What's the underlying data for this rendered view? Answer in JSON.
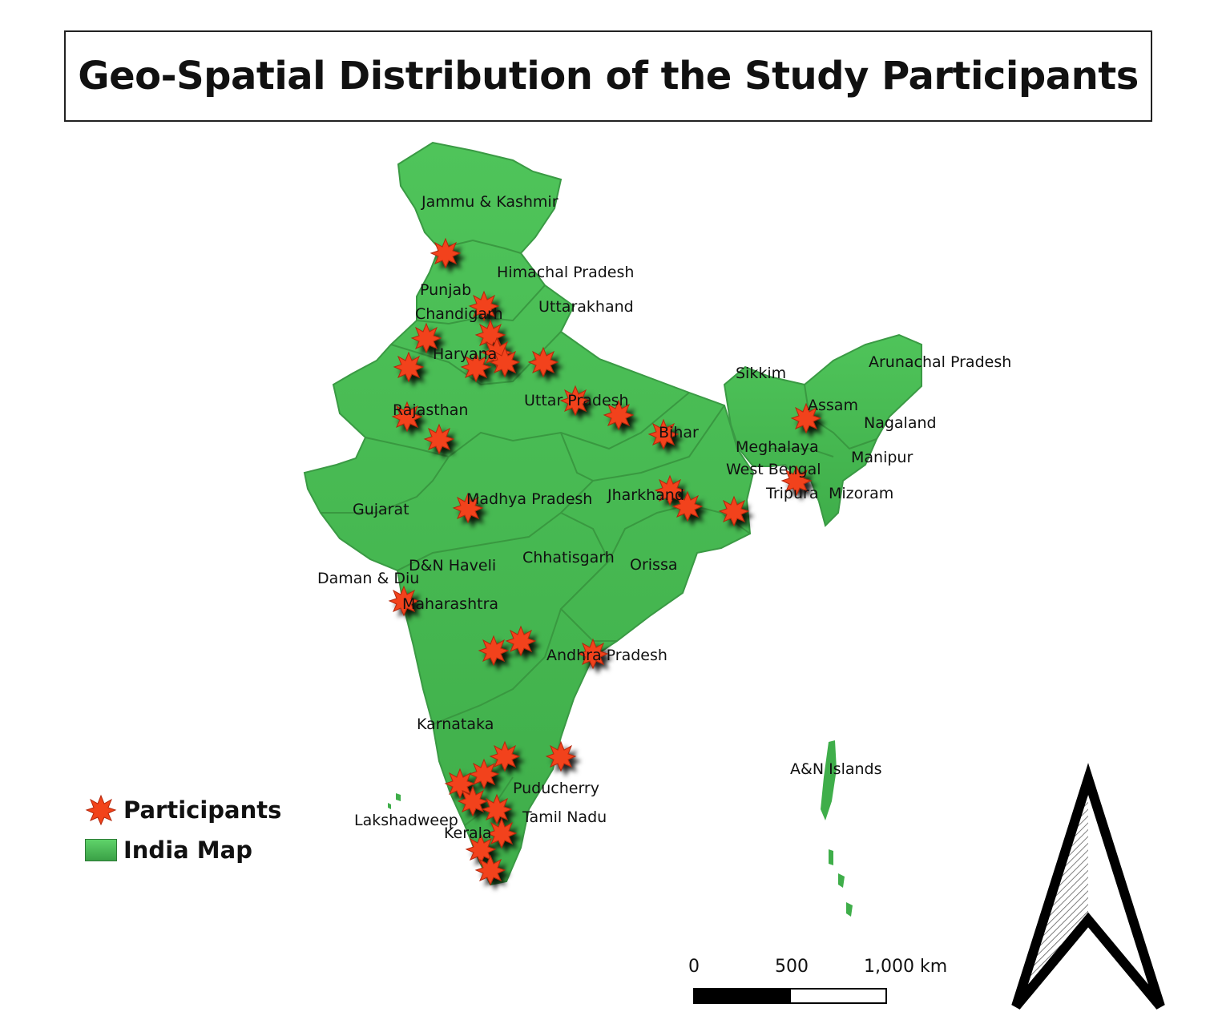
{
  "title": "Geo-Spatial Distribution of the Study Participants",
  "legend": {
    "participants_label": "Participants",
    "map_label": "India Map"
  },
  "scale_bar": {
    "tick_0": "0",
    "tick_1": "500",
    "tick_2": "1,000 km"
  },
  "colors": {
    "land": "#4cbb55",
    "land_dark": "#3c9e46",
    "marker": "#f2431a",
    "marker_outline": "#b3260b"
  },
  "state_labels": [
    {
      "id": "jk",
      "text": "Jammu & Kashmir"
    },
    {
      "id": "hp",
      "text": "Himachal Pradesh"
    },
    {
      "id": "pb",
      "text": "Punjab"
    },
    {
      "id": "ch",
      "text": "Chandigarh"
    },
    {
      "id": "uk",
      "text": "Uttarakhand"
    },
    {
      "id": "hr",
      "text": "Haryana"
    },
    {
      "id": "rj",
      "text": "Rajasthan"
    },
    {
      "id": "up",
      "text": "Uttar Pradesh"
    },
    {
      "id": "br",
      "text": "Bihar"
    },
    {
      "id": "sk",
      "text": "Sikkim"
    },
    {
      "id": "ar",
      "text": "Arunachal Pradesh"
    },
    {
      "id": "as",
      "text": "Assam"
    },
    {
      "id": "nl",
      "text": "Nagaland"
    },
    {
      "id": "ml",
      "text": "Meghalaya"
    },
    {
      "id": "mn",
      "text": "Manipur"
    },
    {
      "id": "wb",
      "text": "West Bengal"
    },
    {
      "id": "tr",
      "text": "Tripura"
    },
    {
      "id": "mz",
      "text": "Mizoram"
    },
    {
      "id": "gj",
      "text": "Gujarat"
    },
    {
      "id": "mp",
      "text": "Madhya Pradesh"
    },
    {
      "id": "jh",
      "text": "Jharkhand"
    },
    {
      "id": "cg",
      "text": "Chhatisgarh"
    },
    {
      "id": "or",
      "text": "Orissa"
    },
    {
      "id": "dnh",
      "text": "D&N Haveli"
    },
    {
      "id": "dd",
      "text": "Daman & Diu"
    },
    {
      "id": "mh",
      "text": "Maharashtra"
    },
    {
      "id": "ap",
      "text": "Andhra Pradesh"
    },
    {
      "id": "ka",
      "text": "Karnataka"
    },
    {
      "id": "an",
      "text": "A&N Islands"
    },
    {
      "id": "py",
      "text": "Puducherry"
    },
    {
      "id": "ld",
      "text": "Lakshadweep"
    },
    {
      "id": "tn",
      "text": "Tamil Nadu"
    },
    {
      "id": "kl",
      "text": "Kerala"
    }
  ]
}
